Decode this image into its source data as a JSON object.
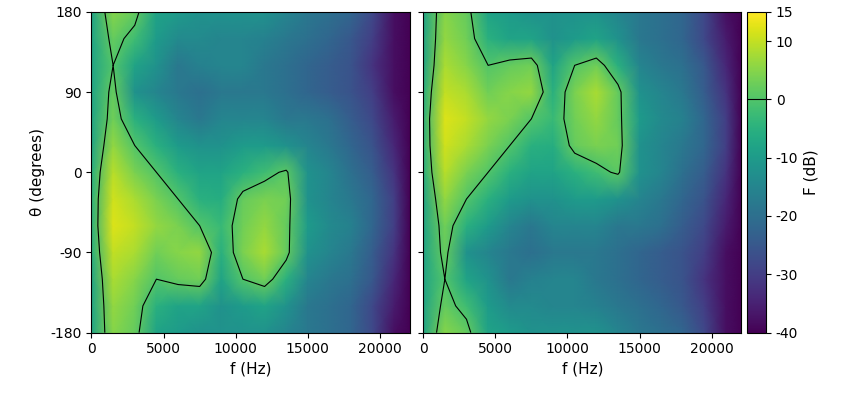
{
  "chart_data": [
    {
      "type": "heatmap",
      "xlabel": "f (Hz)",
      "ylabel": "θ (degrees)",
      "x": [
        0,
        1500,
        3000,
        4500,
        6000,
        7500,
        9000,
        10500,
        12000,
        13500,
        15000,
        16500,
        18000,
        19500,
        21000,
        22050
      ],
      "y": [
        -180,
        -150,
        -120,
        -90,
        -60,
        -30,
        0,
        30,
        60,
        90,
        120,
        150,
        180
      ],
      "values": [
        [
          -8,
          5,
          2,
          -8,
          -10,
          -12,
          -12,
          -12,
          -12,
          -15,
          -18,
          -20,
          -22,
          -28,
          -38,
          -40
        ],
        [
          -8,
          6,
          3,
          -5,
          -8,
          -8,
          -12,
          -10,
          -8,
          -12,
          -18,
          -20,
          -22,
          -28,
          -36,
          -40
        ],
        [
          -8,
          8,
          5,
          0,
          2,
          3,
          -8,
          0,
          3,
          -5,
          -15,
          -18,
          -20,
          -25,
          -34,
          -40
        ],
        [
          -6,
          10,
          8,
          3,
          5,
          6,
          -5,
          4,
          8,
          2,
          -12,
          -15,
          -18,
          -24,
          -32,
          -40
        ],
        [
          -5,
          12,
          10,
          6,
          4,
          0,
          -3,
          3,
          6,
          2,
          -10,
          -14,
          -16,
          -22,
          -30,
          -40
        ],
        [
          -5,
          11,
          8,
          4,
          0,
          -5,
          -6,
          2,
          4,
          3,
          -12,
          -15,
          -18,
          -22,
          -30,
          -40
        ],
        [
          -6,
          9,
          4,
          0,
          -5,
          -8,
          -8,
          -5,
          -2,
          1,
          -12,
          -15,
          -20,
          -24,
          -32,
          -40
        ],
        [
          -8,
          6,
          0,
          -5,
          -10,
          -12,
          -12,
          -10,
          -10,
          -12,
          -15,
          -18,
          -22,
          -26,
          -34,
          -40
        ],
        [
          -8,
          3,
          -5,
          -10,
          -15,
          -18,
          -15,
          -15,
          -15,
          -18,
          -18,
          -20,
          -24,
          -28,
          -36,
          -40
        ],
        [
          -8,
          2,
          -12,
          -15,
          -18,
          -20,
          -18,
          -18,
          -18,
          -20,
          -22,
          -24,
          -26,
          -30,
          -38,
          -40
        ],
        [
          -8,
          0,
          -8,
          -12,
          -18,
          -16,
          -15,
          -15,
          -18,
          -20,
          -22,
          -24,
          -26,
          -32,
          -38,
          -40
        ],
        [
          -8,
          2,
          -2,
          -10,
          -14,
          -14,
          -15,
          -15,
          -16,
          -18,
          -20,
          -22,
          -25,
          -30,
          -38,
          -40
        ],
        [
          -8,
          5,
          2,
          -8,
          -10,
          -12,
          -12,
          -12,
          -12,
          -15,
          -18,
          -20,
          -22,
          -28,
          -38,
          -40
        ]
      ],
      "xlim": [
        0,
        22050
      ],
      "ylim": [
        -180,
        180
      ],
      "xticks": [
        0,
        5000,
        10000,
        15000,
        20000
      ],
      "yticks": [
        -180,
        -90,
        0,
        90,
        180
      ],
      "contour_level": 0
    },
    {
      "type": "heatmap",
      "xlabel": "f (Hz)",
      "x": [
        0,
        1500,
        3000,
        4500,
        6000,
        7500,
        9000,
        10500,
        12000,
        13500,
        15000,
        16500,
        18000,
        19500,
        21000,
        22050
      ],
      "y": [
        -180,
        -150,
        -120,
        -90,
        -60,
        -30,
        0,
        30,
        60,
        90,
        120,
        150,
        180
      ],
      "values": [
        [
          -8,
          5,
          2,
          -8,
          -10,
          -12,
          -12,
          -12,
          -12,
          -15,
          -18,
          -20,
          -22,
          -28,
          -38,
          -40
        ],
        [
          -8,
          2,
          -2,
          -10,
          -14,
          -14,
          -15,
          -15,
          -16,
          -18,
          -20,
          -22,
          -25,
          -30,
          -38,
          -40
        ],
        [
          -8,
          0,
          -8,
          -12,
          -18,
          -16,
          -15,
          -15,
          -18,
          -20,
          -22,
          -24,
          -26,
          -32,
          -38,
          -40
        ],
        [
          -8,
          2,
          -12,
          -15,
          -18,
          -20,
          -18,
          -18,
          -18,
          -20,
          -22,
          -24,
          -26,
          -30,
          -38,
          -40
        ],
        [
          -8,
          3,
          -5,
          -10,
          -15,
          -18,
          -15,
          -15,
          -15,
          -18,
          -18,
          -20,
          -24,
          -28,
          -36,
          -40
        ],
        [
          -8,
          6,
          0,
          -5,
          -10,
          -12,
          -12,
          -10,
          -10,
          -12,
          -15,
          -18,
          -22,
          -26,
          -34,
          -40
        ],
        [
          -6,
          9,
          4,
          0,
          -5,
          -8,
          -8,
          -5,
          -2,
          1,
          -12,
          -15,
          -20,
          -24,
          -32,
          -40
        ],
        [
          -5,
          11,
          8,
          4,
          0,
          -5,
          -6,
          2,
          4,
          3,
          -12,
          -15,
          -18,
          -22,
          -30,
          -40
        ],
        [
          -5,
          12,
          10,
          6,
          4,
          0,
          -3,
          3,
          6,
          2,
          -10,
          -14,
          -16,
          -22,
          -30,
          -40
        ],
        [
          -6,
          10,
          8,
          3,
          5,
          6,
          -5,
          4,
          8,
          2,
          -12,
          -15,
          -18,
          -24,
          -32,
          -40
        ],
        [
          -8,
          8,
          5,
          0,
          2,
          3,
          -8,
          0,
          3,
          -5,
          -15,
          -18,
          -20,
          -25,
          -34,
          -40
        ],
        [
          -8,
          6,
          3,
          -5,
          -8,
          -8,
          -12,
          -10,
          -8,
          -12,
          -18,
          -20,
          -22,
          -28,
          -36,
          -40
        ],
        [
          -8,
          5,
          2,
          -8,
          -10,
          -12,
          -12,
          -12,
          -12,
          -15,
          -18,
          -20,
          -22,
          -28,
          -38,
          -40
        ]
      ],
      "xlim": [
        0,
        22050
      ],
      "ylim": [
        -180,
        180
      ],
      "xticks": [
        0,
        5000,
        10000,
        15000,
        20000
      ],
      "yticks": [
        -180,
        -90,
        0,
        90,
        180
      ],
      "tick_labels": "x",
      "contour_level": 0,
      "colorbar_label": "F (dB)",
      "clim": [
        -40,
        15
      ],
      "cticks": [
        -40,
        -30,
        -20,
        -10,
        0,
        10,
        15
      ]
    }
  ]
}
